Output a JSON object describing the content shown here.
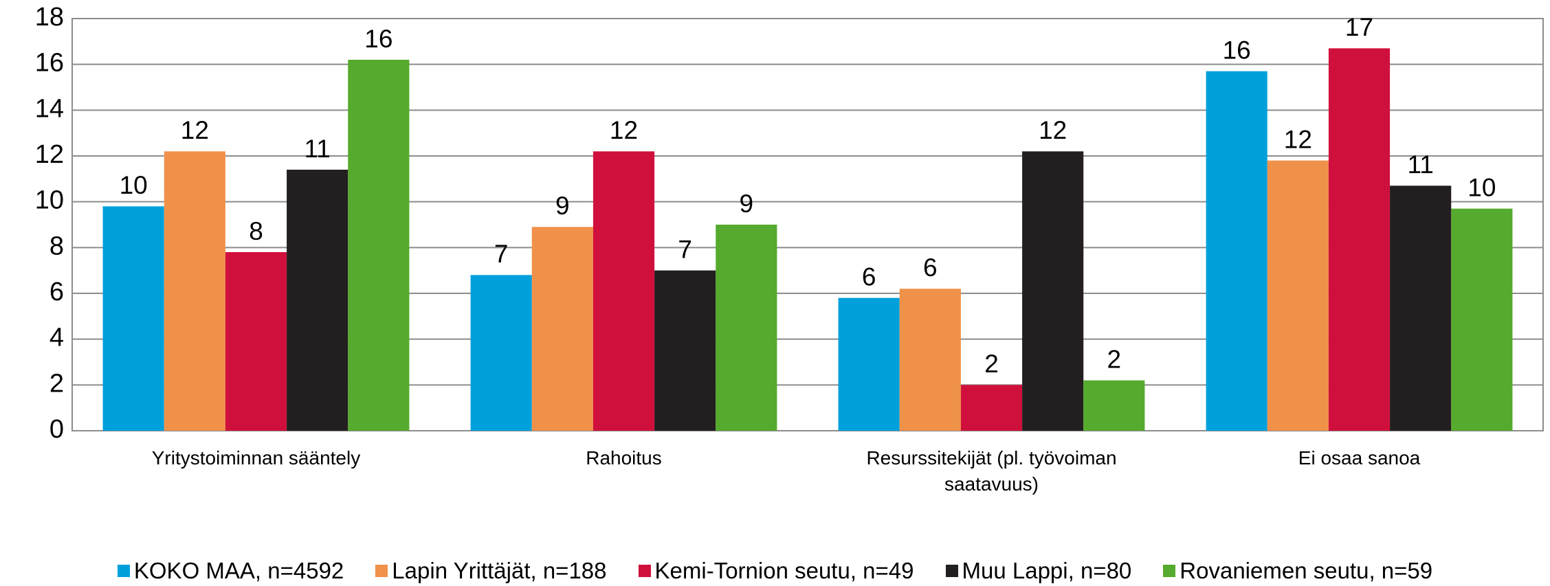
{
  "chart_data": {
    "type": "bar",
    "categories": [
      "Yritystoiminnan sääntely",
      "Rahoitus",
      "Resurssitekijät (pl. työvoiman saatavuus)",
      "Ei osaa sanoa"
    ],
    "series": [
      {
        "name": "KOKO MAA, n=4592",
        "color": "#00a0dc",
        "values": [
          9.8,
          6.8,
          5.8,
          15.7
        ],
        "value_labels": [
          "10",
          "7",
          "6",
          "16"
        ]
      },
      {
        "name": "Lapin Yrittäjät, n=188",
        "color": "#f0914a",
        "values": [
          12.2,
          8.9,
          6.2,
          11.8
        ],
        "value_labels": [
          "12",
          "9",
          "6",
          "12"
        ]
      },
      {
        "name": "Kemi-Tornion seutu, n=49",
        "color": "#d0103c",
        "values": [
          7.8,
          12.2,
          2.0,
          16.7
        ],
        "value_labels": [
          "8",
          "12",
          "2",
          "17"
        ]
      },
      {
        "name": "Muu Lappi, n=80",
        "color": "#231f20",
        "values": [
          11.4,
          7.0,
          12.2,
          10.7
        ],
        "value_labels": [
          "11",
          "7",
          "12",
          "11"
        ]
      },
      {
        "name": "Rovaniemen seutu, n=59",
        "color": "#56aa2e",
        "values": [
          16.2,
          9.0,
          2.2,
          9.7
        ],
        "value_labels": [
          "16",
          "9",
          "2",
          "10"
        ]
      }
    ],
    "ylim": [
      0,
      18
    ],
    "yticks": [
      0,
      2,
      4,
      6,
      8,
      10,
      12,
      14,
      16,
      18
    ],
    "grid": true,
    "legend": "bottom"
  }
}
